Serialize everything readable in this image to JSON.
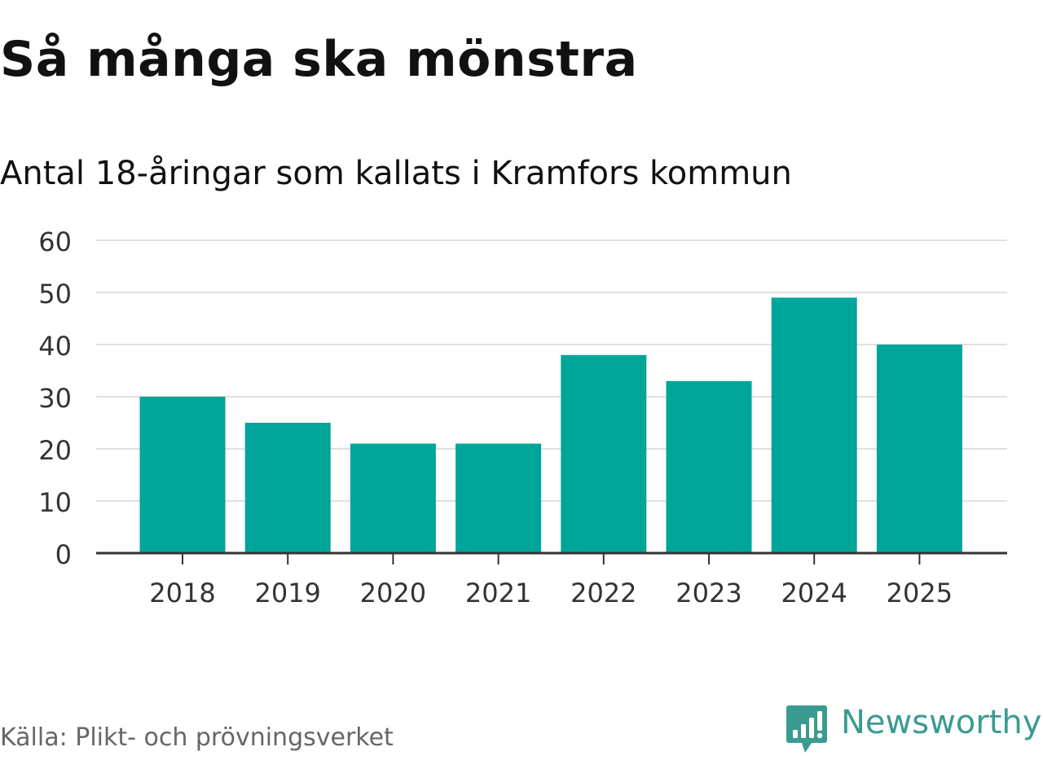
{
  "chart_data": {
    "type": "bar",
    "title": "Så många ska mönstra",
    "subtitle": "Antal 18-åringar som kallats i Kramfors kommun",
    "categories": [
      "2018",
      "2019",
      "2020",
      "2021",
      "2022",
      "2023",
      "2024",
      "2025"
    ],
    "values": [
      30,
      25,
      21,
      21,
      38,
      33,
      49,
      40
    ],
    "ylim": [
      0,
      60
    ],
    "yticks": [
      0,
      10,
      20,
      30,
      40,
      50,
      60
    ],
    "grid": true,
    "bar_color": "#00a59a",
    "grid_color": "#e0e0e0",
    "axis_color": "#333333"
  },
  "source": "Källa: Plikt- och prövningsverket",
  "brand": {
    "name": "Newsworthy",
    "icon": "newsworthy-logo-icon",
    "color": "#3a9b91"
  }
}
